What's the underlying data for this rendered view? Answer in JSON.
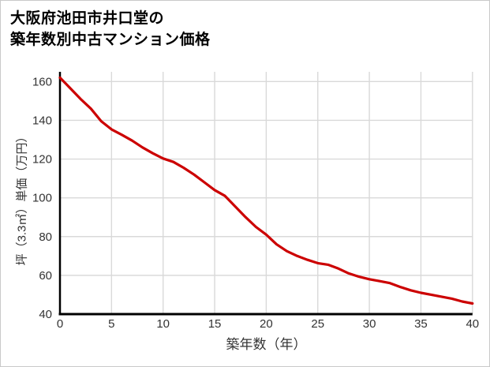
{
  "header": {
    "title_line1": "大阪府池田市井口堂の",
    "title_line2": "築年数別中古マンション価格"
  },
  "chart_data": {
    "type": "line",
    "title": "大阪府池田市井口堂の築年数別中古マンション価格",
    "xlabel": "築年数（年）",
    "ylabel": "坪（3.3㎡）単価（万円）",
    "xlim": [
      0,
      40
    ],
    "ylim": [
      40,
      165
    ],
    "x_ticks": [
      0,
      5,
      10,
      15,
      20,
      25,
      30,
      35,
      40
    ],
    "y_ticks": [
      40,
      60,
      80,
      100,
      120,
      140,
      160
    ],
    "grid": true,
    "legend": false,
    "series": [
      {
        "name": "坪単価（万円）",
        "color": "#cc0000",
        "x": [
          0,
          1,
          2,
          3,
          4,
          5,
          6,
          7,
          8,
          9,
          10,
          11,
          12,
          13,
          14,
          15,
          16,
          17,
          18,
          19,
          20,
          21,
          22,
          23,
          24,
          25,
          26,
          27,
          28,
          29,
          30,
          31,
          32,
          33,
          34,
          35,
          36,
          37,
          38,
          39,
          40
        ],
        "y": [
          162,
          156.5,
          151,
          146,
          139.5,
          135.3,
          132.5,
          129.5,
          126,
          123,
          120.3,
          118.5,
          115.5,
          112,
          108,
          104,
          101,
          95.5,
          90,
          85,
          81,
          76,
          72.5,
          70,
          68,
          66.3,
          65.5,
          63.5,
          61,
          59.3,
          58,
          57,
          56,
          54,
          52.3,
          51,
          50,
          49,
          48,
          46.5,
          45.5
        ]
      }
    ]
  },
  "style": {
    "line_color": "#cc0000",
    "grid_color": "#d9d9d9",
    "axis_color": "#000000",
    "tick_text_color": "#333333",
    "background_color": "#ffffff",
    "border_color": "#c9c9c9"
  }
}
